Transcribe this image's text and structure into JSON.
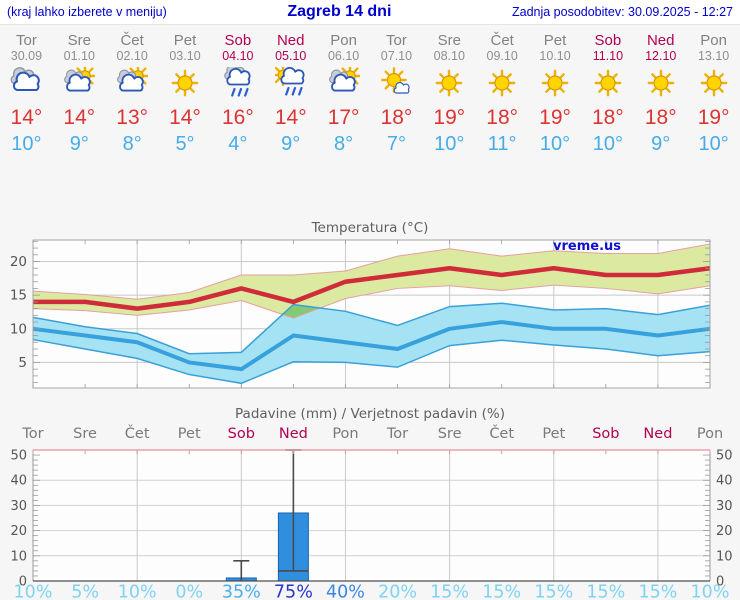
{
  "header": {
    "left_note": "(kraj lahko izberete v meniju)",
    "title": "Zagreb 14 dni",
    "updated": "Zadnja posodobitev: 30.09.2025 - 12:27"
  },
  "watermark": "vreme.us",
  "colors": {
    "link_blue": "#0000cc",
    "weekend": "#b30052",
    "weekday_gray": "#828282",
    "high_temp_red": "#dd3333",
    "low_temp_blue": "#45ace8",
    "temp_line_high": "#cf2b39",
    "temp_line_low": "#36a1dc",
    "band_high_fill": "#dce9a0",
    "band_high_edge": "#e5a0a0",
    "band_low_fill": "#a5e2f3",
    "band_low_edge": "#3aa0d8",
    "band_overlap_green": "#83ca74",
    "bar_blue": "#2f8fde",
    "whisker_gray": "#4a4a4a",
    "precip_top_border_pink": "#e8919c",
    "grid_gray": "#c9c9c9",
    "axis_text": "#555555"
  },
  "forecast": {
    "days": [
      {
        "name": "Tor",
        "date": "30.09",
        "weekend": false,
        "icon": "cloudy",
        "high": "14°",
        "low": "10°"
      },
      {
        "name": "Sre",
        "date": "01.10",
        "weekend": false,
        "icon": "sun-cloud",
        "high": "14°",
        "low": "9°"
      },
      {
        "name": "Čet",
        "date": "02.10",
        "weekend": false,
        "icon": "sun-cloud",
        "high": "13°",
        "low": "8°"
      },
      {
        "name": "Pet",
        "date": "03.10",
        "weekend": false,
        "icon": "sunny",
        "high": "14°",
        "low": "5°"
      },
      {
        "name": "Sob",
        "date": "04.10",
        "weekend": true,
        "icon": "rain",
        "high": "16°",
        "low": "4°"
      },
      {
        "name": "Ned",
        "date": "05.10",
        "weekend": true,
        "icon": "sun-rain",
        "high": "14°",
        "low": "9°"
      },
      {
        "name": "Pon",
        "date": "06.10",
        "weekend": false,
        "icon": "sun-cloud",
        "high": "17°",
        "low": "8°"
      },
      {
        "name": "Tor",
        "date": "07.10",
        "weekend": false,
        "icon": "sun-small-cloud",
        "high": "18°",
        "low": "7°"
      },
      {
        "name": "Sre",
        "date": "08.10",
        "weekend": false,
        "icon": "sunny",
        "high": "19°",
        "low": "10°"
      },
      {
        "name": "Čet",
        "date": "09.10",
        "weekend": false,
        "icon": "sunny",
        "high": "18°",
        "low": "11°"
      },
      {
        "name": "Pet",
        "date": "10.10",
        "weekend": false,
        "icon": "sunny",
        "high": "19°",
        "low": "10°"
      },
      {
        "name": "Sob",
        "date": "11.10",
        "weekend": true,
        "icon": "sunny",
        "high": "18°",
        "low": "10°"
      },
      {
        "name": "Ned",
        "date": "12.10",
        "weekend": true,
        "icon": "sunny",
        "high": "18°",
        "low": "9°"
      },
      {
        "name": "Pon",
        "date": "13.10",
        "weekend": false,
        "icon": "sunny",
        "high": "19°",
        "low": "10°"
      }
    ]
  },
  "chart_data": [
    {
      "type": "line",
      "title": "Temperatura (°C)",
      "categories": [
        "Tor",
        "Sre",
        "Čet",
        "Pet",
        "Sob",
        "Ned",
        "Pon",
        "Tor",
        "Sre",
        "Čet",
        "Pet",
        "Sob",
        "Ned",
        "Pon"
      ],
      "ylim": [
        1.2,
        23.2
      ],
      "yticks": [
        5,
        10,
        15,
        20
      ],
      "grid_every_days": 2,
      "legend_position": "none",
      "series": [
        {
          "name": "high_temp",
          "values": [
            14,
            14,
            13,
            14,
            16,
            14,
            17,
            18,
            19,
            18,
            19,
            18,
            18,
            19
          ]
        },
        {
          "name": "high_range_max",
          "values": [
            15.6,
            15.1,
            14.4,
            15.4,
            18.0,
            18.0,
            18.6,
            20.8,
            21.9,
            20.8,
            21.6,
            21.2,
            21.2,
            22.6
          ]
        },
        {
          "name": "high_range_min",
          "values": [
            13.0,
            12.7,
            12.0,
            12.8,
            14.2,
            11.6,
            14.5,
            16.0,
            16.4,
            15.7,
            16.5,
            16.0,
            15.2,
            16.4
          ]
        },
        {
          "name": "low_temp",
          "values": [
            10,
            9,
            8,
            5,
            4,
            9,
            8,
            7,
            10,
            11,
            10,
            10,
            9,
            10
          ]
        },
        {
          "name": "low_range_max",
          "values": [
            11.7,
            10.3,
            9.3,
            6.3,
            6.5,
            13.6,
            12.6,
            10.5,
            13.3,
            13.8,
            12.8,
            13.0,
            12.1,
            13.5
          ]
        },
        {
          "name": "low_range_min",
          "values": [
            8.4,
            7.0,
            5.6,
            3.2,
            1.9,
            5.1,
            5.0,
            4.3,
            7.5,
            8.3,
            7.6,
            7.0,
            6.0,
            6.6
          ]
        }
      ]
    },
    {
      "type": "bar",
      "title": "Padavine (mm) / Verjetnost padavin (%)",
      "categories": [
        "Tor",
        "Sre",
        "Čet",
        "Pet",
        "Sob",
        "Ned",
        "Pon",
        "Tor",
        "Sre",
        "Čet",
        "Pet",
        "Sob",
        "Ned",
        "Pon"
      ],
      "weekend_flags": [
        false,
        false,
        false,
        false,
        true,
        true,
        false,
        false,
        false,
        false,
        false,
        true,
        true,
        false
      ],
      "ylim": [
        0,
        52
      ],
      "yticks": [
        0,
        10,
        20,
        30,
        40,
        50
      ],
      "values": [
        0,
        0,
        0,
        0,
        1.2,
        27,
        0,
        0,
        0,
        0,
        0,
        0,
        0,
        0
      ],
      "whisker_low": [
        null,
        null,
        null,
        null,
        0,
        4,
        null,
        null,
        null,
        null,
        null,
        null,
        null,
        null
      ],
      "whisker_high": [
        null,
        null,
        null,
        null,
        8,
        52,
        null,
        null,
        null,
        null,
        null,
        null,
        null,
        null
      ],
      "probability_labels": [
        "10%",
        "5%",
        "10%",
        "0%",
        "35%",
        "75%",
        "40%",
        "20%",
        "15%",
        "15%",
        "15%",
        "15%",
        "15%",
        "10%"
      ],
      "probability_colors": [
        "#7ed3f2",
        "#7ed3f2",
        "#7ed3f2",
        "#7ed3f2",
        "#49b0e9",
        "#2a33cb",
        "#3b86e0",
        "#7ed3f2",
        "#7ed3f2",
        "#7ed3f2",
        "#7ed3f2",
        "#7ed3f2",
        "#7ed3f2",
        "#7ed3f2"
      ]
    }
  ]
}
